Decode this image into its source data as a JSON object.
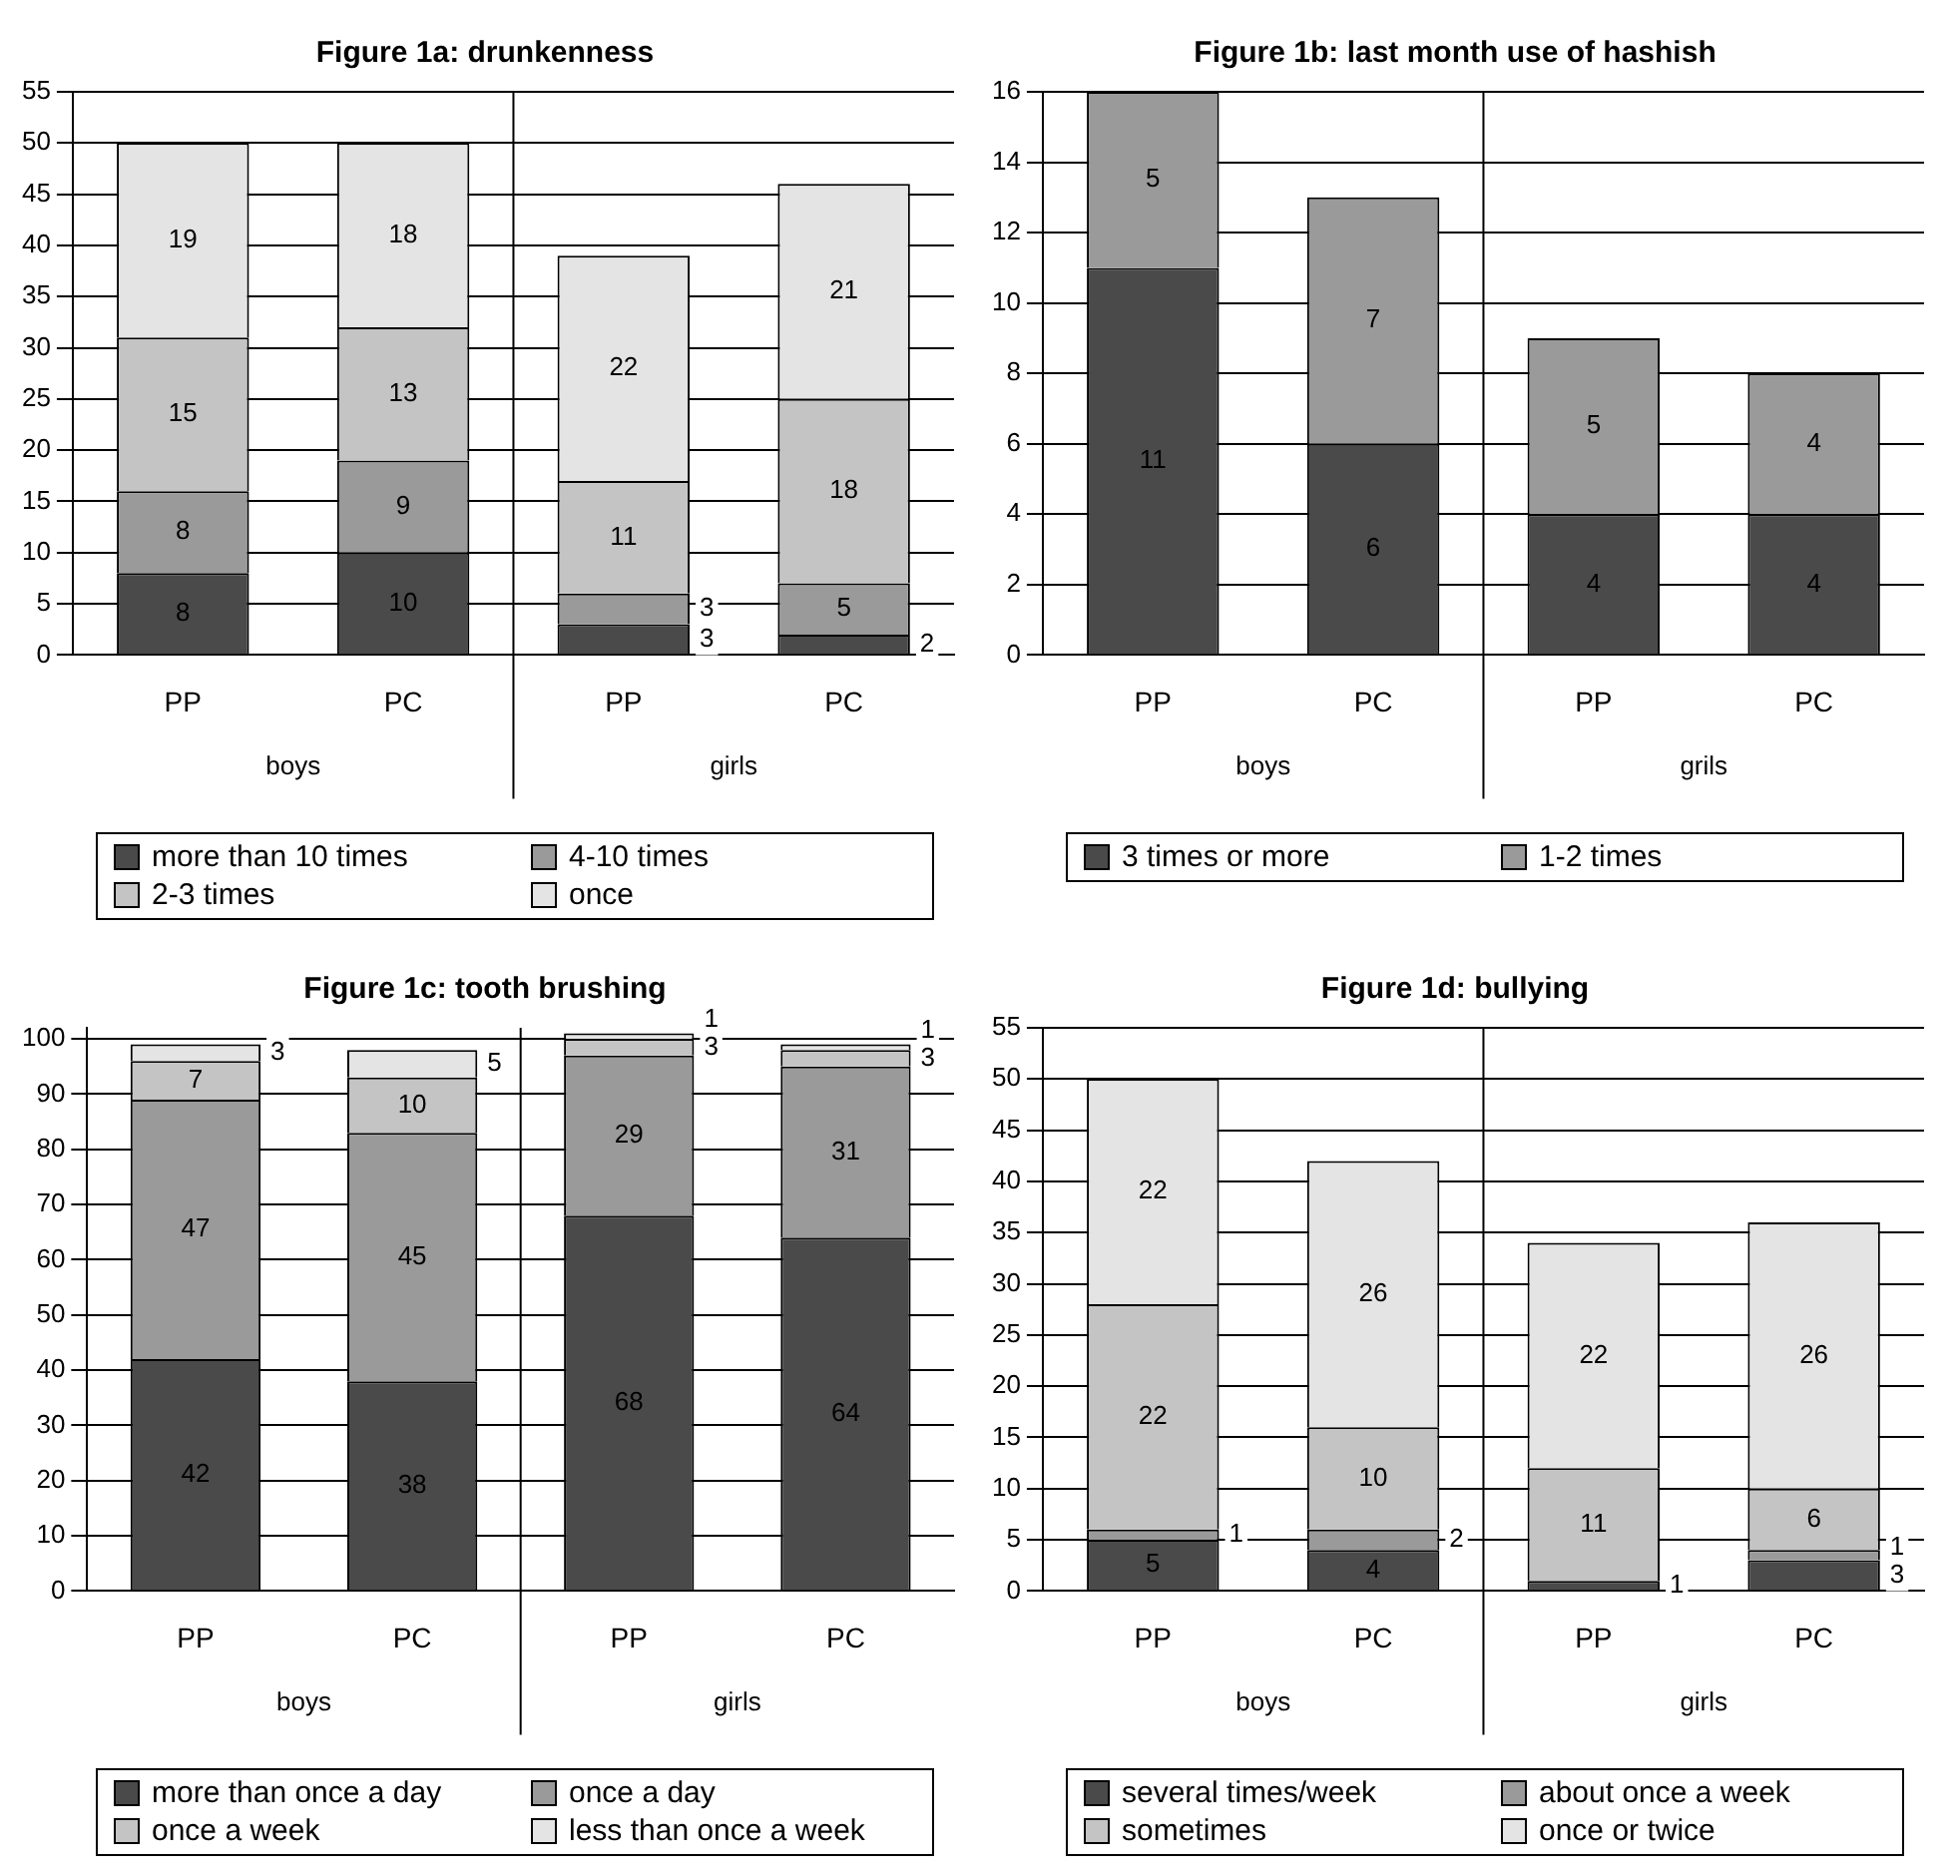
{
  "chart_data": [
    {
      "type": "bar",
      "title": "Figure 1a: drunkenness",
      "categories": [
        "PP",
        "PC",
        "PP",
        "PC"
      ],
      "stacked": true,
      "data_labels": true,
      "grid": "y",
      "legend": "bottom",
      "ylim": [
        0,
        55
      ],
      "yticks": [
        0,
        5,
        10,
        15,
        20,
        25,
        30,
        35,
        40,
        45,
        50,
        55
      ],
      "annotations": [
        "boys",
        "girls"
      ],
      "series": [
        {
          "name": "more than 10 times",
          "color": "#4a4a4a",
          "values": [
            8,
            10,
            3,
            2
          ]
        },
        {
          "name": "4-10 times",
          "color": "#9a9a9a",
          "values": [
            8,
            9,
            3,
            5
          ]
        },
        {
          "name": "2-3 times",
          "color": "#c4c4c4",
          "values": [
            15,
            13,
            11,
            18
          ]
        },
        {
          "name": "once",
          "color": "#e4e4e4",
          "values": [
            19,
            18,
            22,
            21
          ]
        }
      ]
    },
    {
      "type": "bar",
      "title": "Figure 1b: last month use of hashish",
      "categories": [
        "PP",
        "PC",
        "PP",
        "PC"
      ],
      "stacked": true,
      "data_labels": true,
      "grid": "y",
      "legend": "bottom",
      "ylim": [
        0,
        16
      ],
      "yticks": [
        0,
        2,
        4,
        6,
        8,
        10,
        12,
        14,
        16
      ],
      "annotations": [
        "boys",
        "grils"
      ],
      "series": [
        {
          "name": "3 times or more",
          "color": "#4a4a4a",
          "values": [
            11,
            6,
            4,
            4
          ]
        },
        {
          "name": "1-2 times",
          "color": "#9a9a9a",
          "values": [
            5,
            7,
            5,
            4
          ]
        }
      ]
    },
    {
      "type": "bar",
      "title": "Figure 1c: tooth brushing",
      "categories": [
        "PP",
        "PC",
        "PP",
        "PC"
      ],
      "stacked": true,
      "data_labels": true,
      "grid": "y",
      "legend": "bottom",
      "ylim": [
        0,
        102
      ],
      "yticks": [
        0,
        10,
        20,
        30,
        40,
        50,
        60,
        70,
        80,
        90,
        100
      ],
      "annotations": [
        "boys",
        "girls"
      ],
      "series": [
        {
          "name": "more than once a day",
          "color": "#4a4a4a",
          "values": [
            42,
            38,
            68,
            64
          ]
        },
        {
          "name": "once a day",
          "color": "#9a9a9a",
          "values": [
            47,
            45,
            29,
            31
          ]
        },
        {
          "name": "once a week",
          "color": "#c4c4c4",
          "values": [
            7,
            10,
            3,
            3
          ]
        },
        {
          "name": "less than once a week",
          "color": "#e4e4e4",
          "values": [
            3,
            5,
            1,
            1
          ]
        }
      ]
    },
    {
      "type": "bar",
      "title": "Figure 1d: bullying",
      "categories": [
        "PP",
        "PC",
        "PP",
        "PC"
      ],
      "stacked": true,
      "data_labels": true,
      "grid": "y",
      "legend": "bottom",
      "ylim": [
        0,
        55
      ],
      "yticks": [
        0,
        5,
        10,
        15,
        20,
        25,
        30,
        35,
        40,
        45,
        50,
        55
      ],
      "annotations": [
        "boys",
        "girls"
      ],
      "series": [
        {
          "name": "several times/week",
          "color": "#4a4a4a",
          "values": [
            5,
            4,
            1,
            3
          ]
        },
        {
          "name": "about once a week",
          "color": "#9a9a9a",
          "values": [
            1,
            2,
            null,
            1
          ]
        },
        {
          "name": "sometimes",
          "color": "#c4c4c4",
          "values": [
            22,
            10,
            11,
            6
          ]
        },
        {
          "name": "once or twice",
          "color": "#e4e4e4",
          "values": [
            22,
            26,
            22,
            26
          ]
        }
      ]
    }
  ]
}
